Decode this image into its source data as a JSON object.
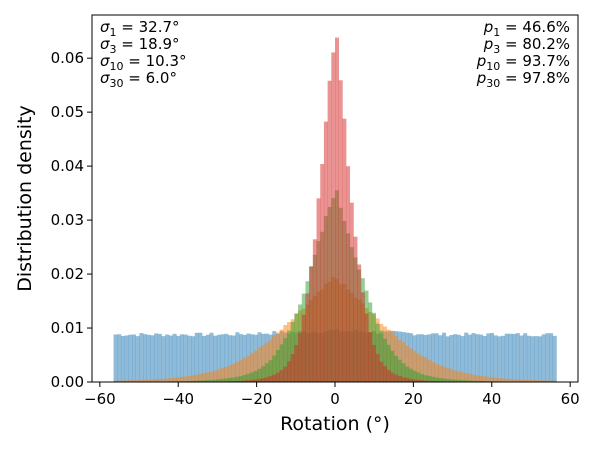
{
  "chart_data": {
    "type": "histogram",
    "xlabel": "Rotation (°)",
    "ylabel": "Distribution density",
    "xlim": [
      -62,
      62
    ],
    "ylim": [
      0,
      0.068
    ],
    "xticks": [
      -60,
      -40,
      -20,
      0,
      20,
      40,
      60
    ],
    "xtick_labels": [
      "−60",
      "−40",
      "−20",
      "0",
      "20",
      "40",
      "60"
    ],
    "yticks": [
      0,
      0.01,
      0.02,
      0.03,
      0.04,
      0.05,
      0.06
    ],
    "ytick_labels": [
      "0.00",
      "0.01",
      "0.02",
      "0.03",
      "0.04",
      "0.05",
      "0.06"
    ],
    "grid": false,
    "series": [
      {
        "color": "#1f77b4",
        "opacity": 0.5,
        "sigma": 32.7,
        "range": [
          -56.5,
          56.5
        ],
        "plateau": 0.0088,
        "peak": 0.0095
      },
      {
        "color": "#ff7f0e",
        "opacity": 0.5,
        "sigma": 18.9,
        "range": [
          -56.5,
          56.5
        ],
        "peak": 0.0195
      },
      {
        "color": "#2ca02c",
        "opacity": 0.5,
        "sigma": 10.3,
        "range": [
          -56.5,
          56.5
        ],
        "peak": 0.036
      },
      {
        "color": "#d62728",
        "opacity": 0.5,
        "sigma": 6.0,
        "range": [
          -56.5,
          56.5
        ],
        "peak": 0.066
      }
    ],
    "annotations_left": [
      {
        "sym": "σ",
        "sub": "1",
        "val": " = 32.7°"
      },
      {
        "sym": "σ",
        "sub": "3",
        "val": " = 18.9°"
      },
      {
        "sym": "σ",
        "sub": "10",
        "val": " = 10.3°"
      },
      {
        "sym": "σ",
        "sub": "30",
        "val": " = 6.0°"
      }
    ],
    "annotations_right": [
      {
        "sym": "p",
        "sub": "1",
        "val": " = 46.6%"
      },
      {
        "sym": "p",
        "sub": "3",
        "val": " = 80.2%"
      },
      {
        "sym": "p",
        "sub": "10",
        "val": " = 93.7%"
      },
      {
        "sym": "p",
        "sub": "30",
        "val": " = 97.8%"
      }
    ]
  }
}
